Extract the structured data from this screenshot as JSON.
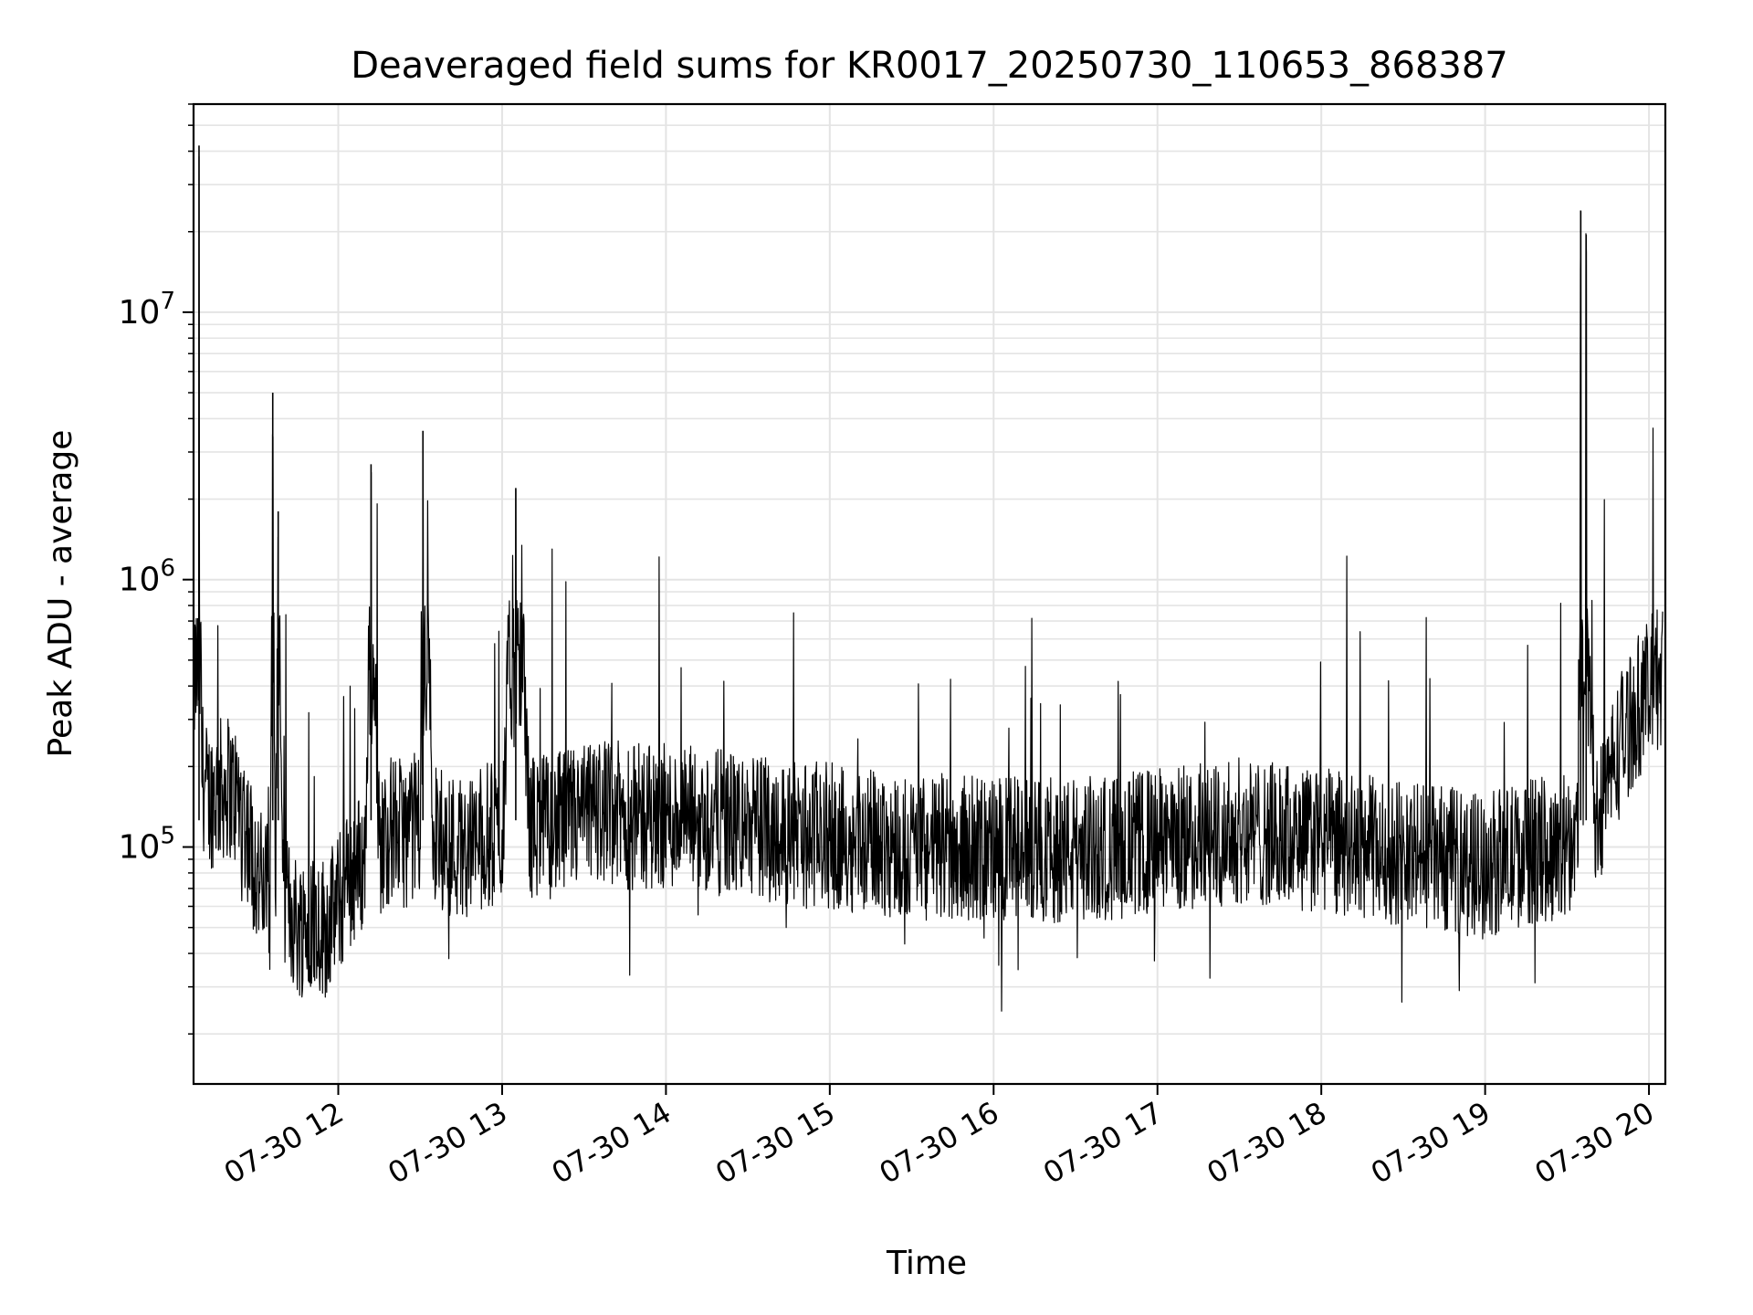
{
  "chart_data": {
    "type": "line",
    "title": "Deaveraged field sums for KR0017_20250730_110653_868387",
    "xlabel": "Time",
    "ylabel": "Peak ADU - average",
    "yscale": "log",
    "grid": true,
    "xlim": [
      "2025-07-30 11:07",
      "2025-07-30 20:06"
    ],
    "ylim": [
      13000,
      60000000
    ],
    "xticks": [
      {
        "t": "2025-07-30 12:00",
        "label": "07-30 12"
      },
      {
        "t": "2025-07-30 13:00",
        "label": "07-30 13"
      },
      {
        "t": "2025-07-30 14:00",
        "label": "07-30 14"
      },
      {
        "t": "2025-07-30 15:00",
        "label": "07-30 15"
      },
      {
        "t": "2025-07-30 16:00",
        "label": "07-30 16"
      },
      {
        "t": "2025-07-30 17:00",
        "label": "07-30 17"
      },
      {
        "t": "2025-07-30 18:00",
        "label": "07-30 18"
      },
      {
        "t": "2025-07-30 19:00",
        "label": "07-30 19"
      },
      {
        "t": "2025-07-30 20:00",
        "label": "07-30 20"
      }
    ],
    "yticks": [
      {
        "v": 100000,
        "base": "10",
        "exp": "5"
      },
      {
        "v": 1000000,
        "base": "10",
        "exp": "6"
      },
      {
        "v": 10000000,
        "base": "10",
        "exp": "7"
      }
    ],
    "line_color": "#000000",
    "series": [
      {
        "x": [
          "2025-07-30 11:07",
          "2025-07-30 11:08",
          "2025-07-30 11:09",
          "2025-07-30 11:10",
          "2025-07-30 11:12",
          "2025-07-30 11:15",
          "2025-07-30 11:20",
          "2025-07-30 11:25",
          "2025-07-30 11:30",
          "2025-07-30 11:35",
          "2025-07-30 11:36",
          "2025-07-30 11:37",
          "2025-07-30 11:38",
          "2025-07-30 11:40",
          "2025-07-30 11:42",
          "2025-07-30 11:45",
          "2025-07-30 11:50",
          "2025-07-30 11:55",
          "2025-07-30 12:00",
          "2025-07-30 12:05",
          "2025-07-30 12:10",
          "2025-07-30 12:12",
          "2025-07-30 12:15",
          "2025-07-30 12:20",
          "2025-07-30 12:25",
          "2025-07-30 12:30",
          "2025-07-30 12:31",
          "2025-07-30 12:35",
          "2025-07-30 12:45",
          "2025-07-30 12:55",
          "2025-07-30 13:00",
          "2025-07-30 13:05",
          "2025-07-30 13:10",
          "2025-07-30 13:20",
          "2025-07-30 13:30",
          "2025-07-30 13:35",
          "2025-07-30 13:45",
          "2025-07-30 14:00",
          "2025-07-30 14:15",
          "2025-07-30 14:30",
          "2025-07-30 14:45",
          "2025-07-30 15:00",
          "2025-07-30 15:15",
          "2025-07-30 15:30",
          "2025-07-30 15:45",
          "2025-07-30 16:00",
          "2025-07-30 16:15",
          "2025-07-30 16:30",
          "2025-07-30 16:45",
          "2025-07-30 17:00",
          "2025-07-30 17:15",
          "2025-07-30 17:30",
          "2025-07-30 17:45",
          "2025-07-30 18:00",
          "2025-07-30 18:15",
          "2025-07-30 18:30",
          "2025-07-30 18:45",
          "2025-07-30 19:00",
          "2025-07-30 19:15",
          "2025-07-30 19:30",
          "2025-07-30 19:34",
          "2025-07-30 19:35",
          "2025-07-30 19:37",
          "2025-07-30 19:40",
          "2025-07-30 19:45",
          "2025-07-30 19:50",
          "2025-07-30 19:55",
          "2025-07-30 20:00",
          "2025-07-30 20:05"
        ],
        "y": [
          300000,
          800000,
          42000000,
          200000,
          150000,
          160000,
          170000,
          140000,
          80000,
          65000,
          5000000,
          60000,
          1800000,
          55000,
          60000,
          50000,
          55000,
          50000,
          60000,
          80000,
          90000,
          2700000,
          100000,
          120000,
          110000,
          130000,
          3600000,
          110000,
          100000,
          110000,
          110000,
          2200000,
          120000,
          120000,
          130000,
          140000,
          130000,
          130000,
          125000,
          120000,
          115000,
          110000,
          105000,
          100000,
          100000,
          98000,
          97000,
          98000,
          100000,
          105000,
          110000,
          115000,
          110000,
          105000,
          100000,
          95000,
          90000,
          85000,
          95000,
          100000,
          110000,
          24000000,
          19500000,
          120000,
          180000,
          250000,
          330000,
          380000,
          450000
        ]
      }
    ]
  }
}
